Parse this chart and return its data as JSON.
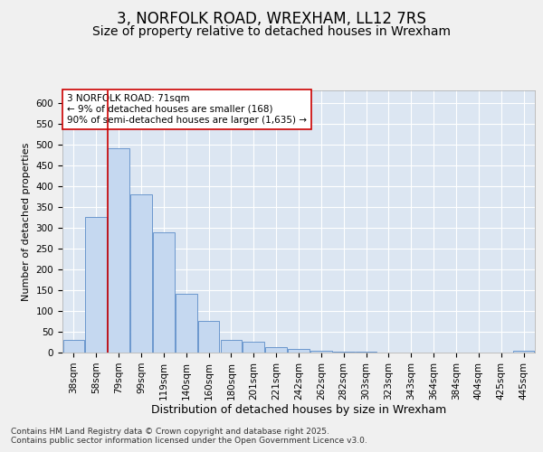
{
  "title": "3, NORFOLK ROAD, WREXHAM, LL12 7RS",
  "subtitle": "Size of property relative to detached houses in Wrexham",
  "xlabel": "Distribution of detached houses by size in Wrexham",
  "ylabel": "Number of detached properties",
  "categories": [
    "38sqm",
    "58sqm",
    "79sqm",
    "99sqm",
    "119sqm",
    "140sqm",
    "160sqm",
    "180sqm",
    "201sqm",
    "221sqm",
    "242sqm",
    "262sqm",
    "282sqm",
    "303sqm",
    "323sqm",
    "343sqm",
    "364sqm",
    "384sqm",
    "404sqm",
    "425sqm",
    "445sqm"
  ],
  "values": [
    30,
    325,
    490,
    380,
    290,
    142,
    75,
    30,
    27,
    14,
    8,
    5,
    3,
    2,
    1,
    0,
    0,
    0,
    0,
    0,
    4
  ],
  "bar_color": "#c5d8f0",
  "bar_edge_color": "#5b8cc8",
  "vline_x_index": 1.5,
  "vline_color": "#cc0000",
  "annotation_line1": "3 NORFOLK ROAD: 71sqm",
  "annotation_line2": "← 9% of detached houses are smaller (168)",
  "annotation_line3": "90% of semi-detached houses are larger (1,635) →",
  "annotation_box_color": "#ffffff",
  "annotation_box_edge_color": "#cc0000",
  "ylim": [
    0,
    630
  ],
  "yticks": [
    0,
    50,
    100,
    150,
    200,
    250,
    300,
    350,
    400,
    450,
    500,
    550,
    600
  ],
  "background_color": "#dce6f2",
  "grid_color": "#ffffff",
  "footer": "Contains HM Land Registry data © Crown copyright and database right 2025.\nContains public sector information licensed under the Open Government Licence v3.0.",
  "title_fontsize": 12,
  "subtitle_fontsize": 10,
  "xlabel_fontsize": 9,
  "ylabel_fontsize": 8,
  "tick_fontsize": 7.5,
  "annotation_fontsize": 7.5,
  "footer_fontsize": 6.5
}
